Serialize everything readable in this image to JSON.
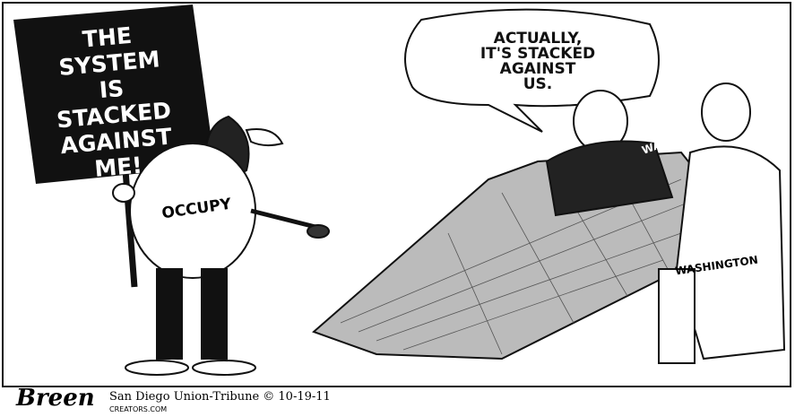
{
  "sign": {
    "lines": [
      "THE",
      "SYSTEM",
      "IS",
      "STACKED",
      "AGAINST",
      "ME!"
    ]
  },
  "speech_bubble": {
    "lines": [
      "ACTUALLY,",
      "IT'S STACKED",
      "AGAINST",
      "US."
    ]
  },
  "labels": {
    "protester": "OCCUPY",
    "banker": "WALL ST.",
    "politician": "WASHINGTON"
  },
  "credits": {
    "signature": "Breen",
    "publication": "San Diego Union-Tribune © 10-19-11",
    "syndicate": "CREATORS.COM"
  }
}
